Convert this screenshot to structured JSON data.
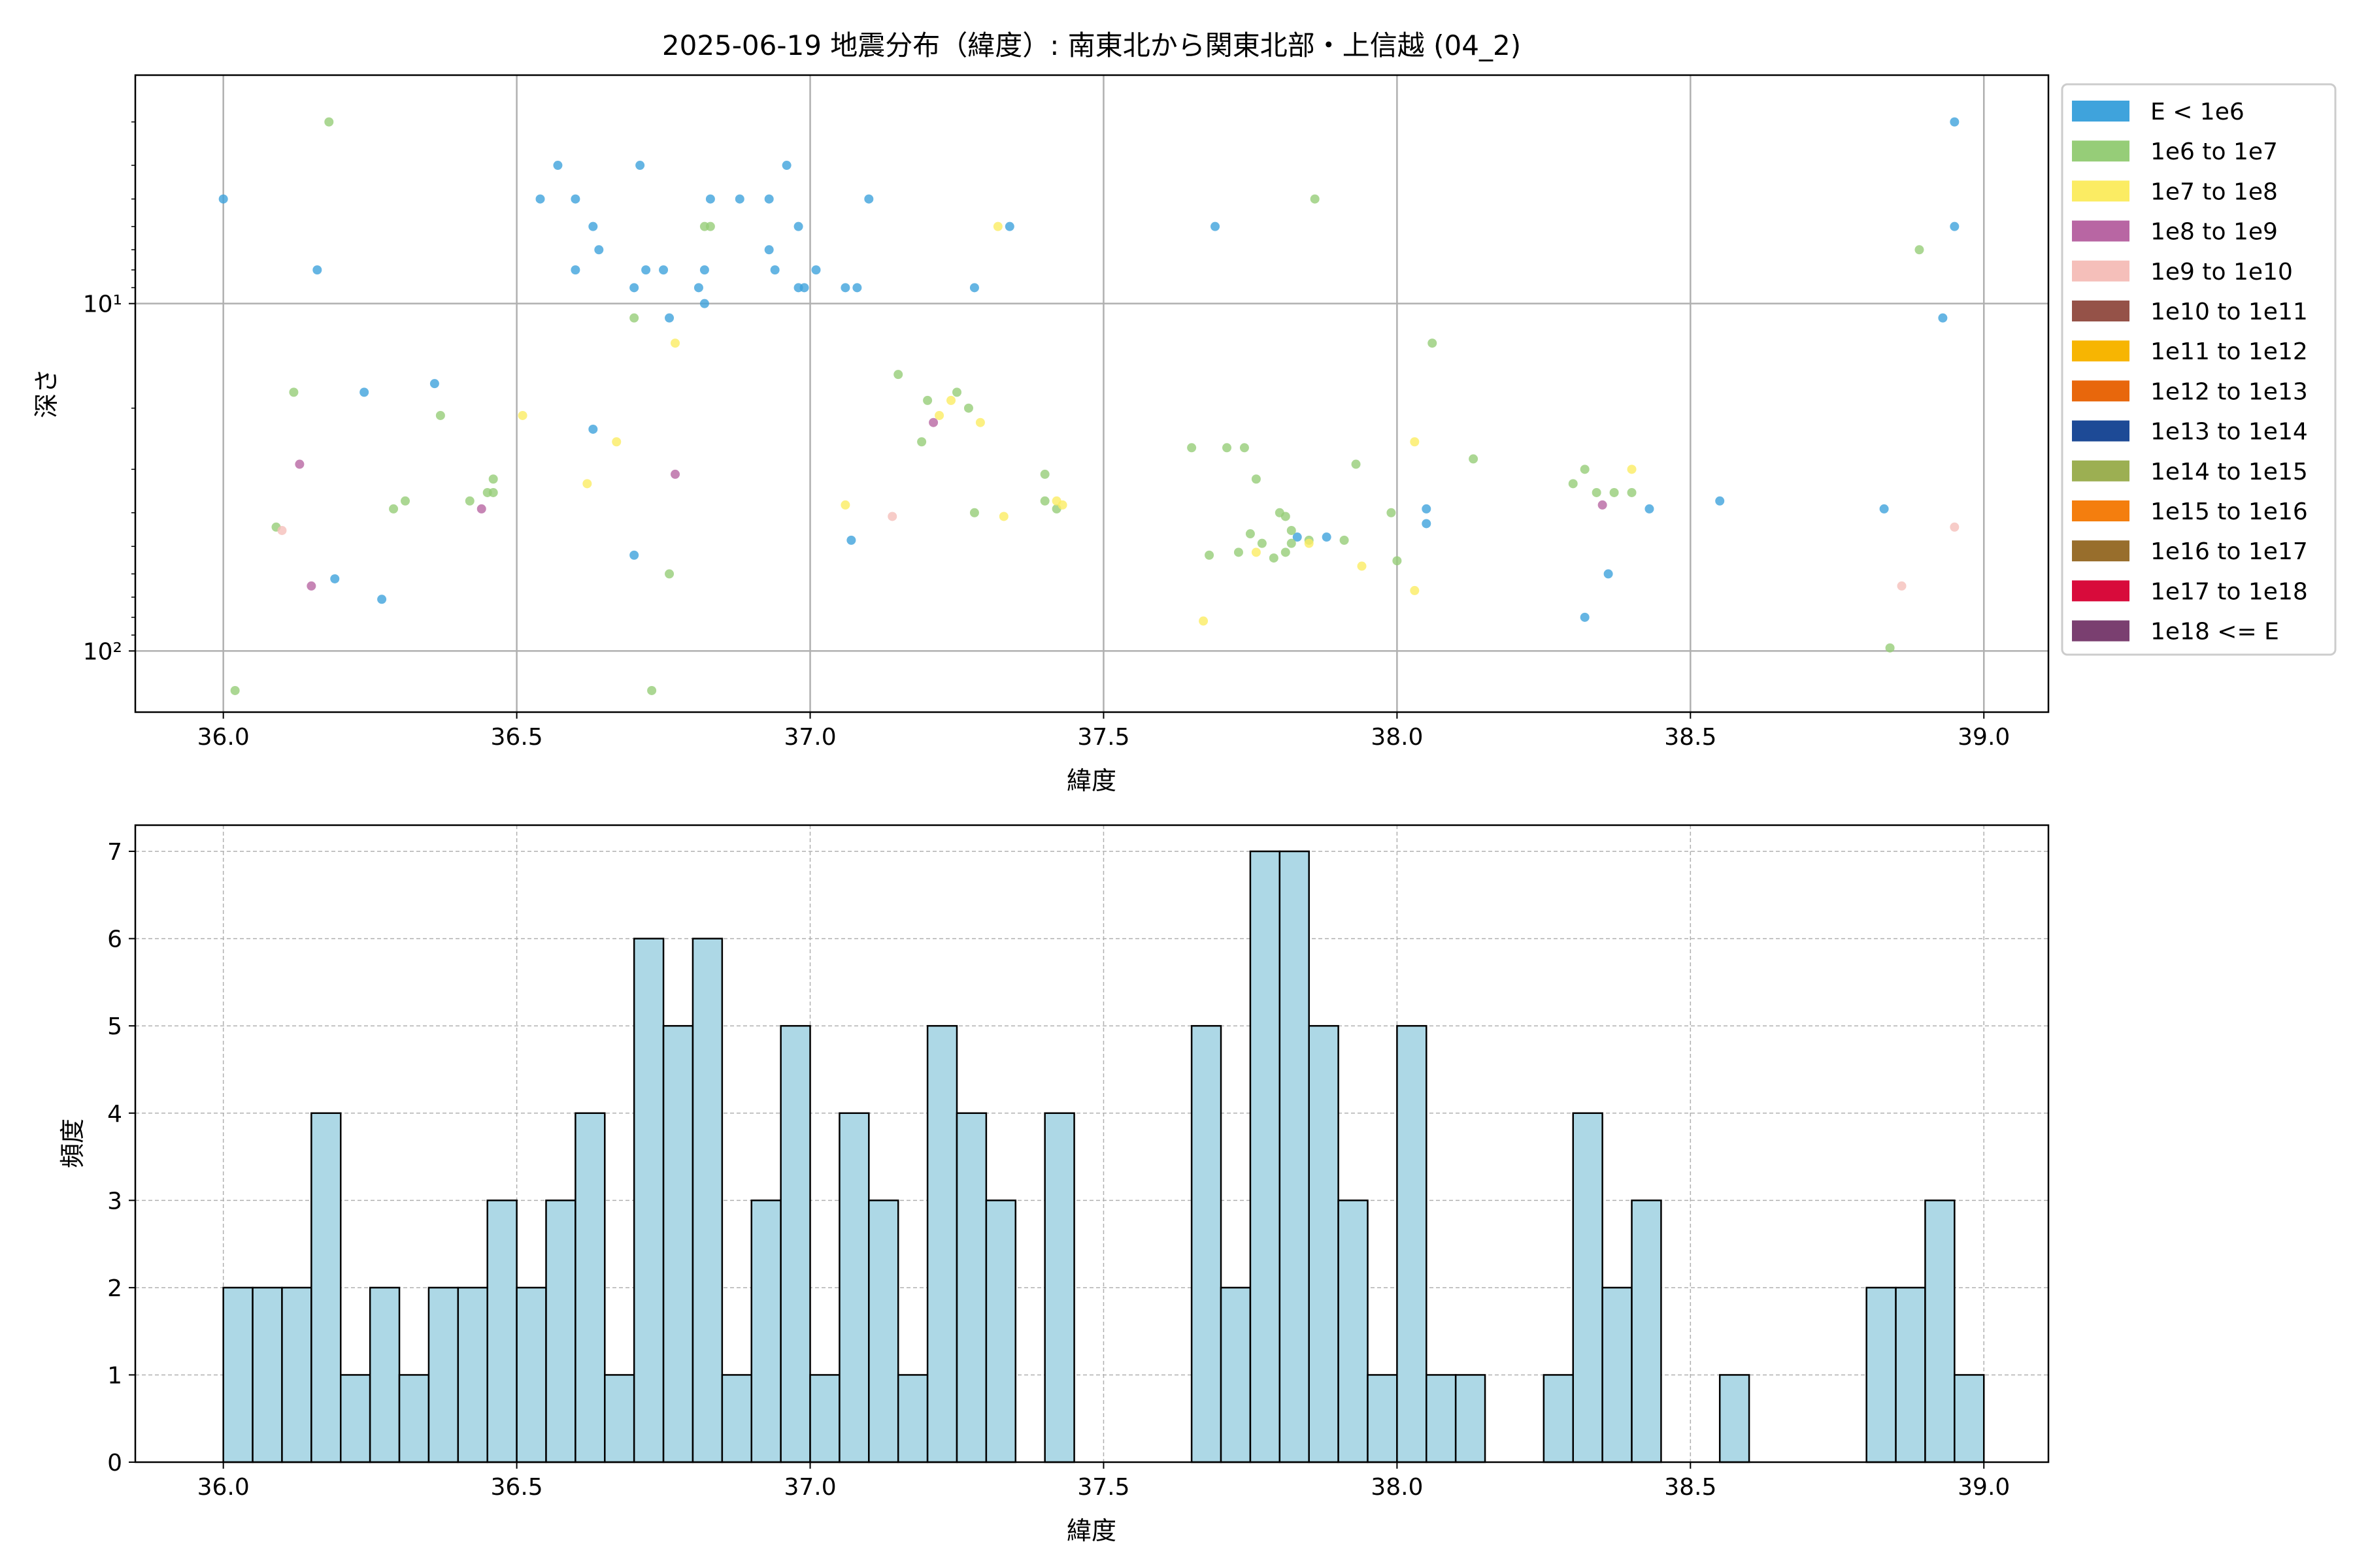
{
  "chart_data": [
    {
      "type": "scatter",
      "title": "2025-06-19 地震分布（緯度）: 南東北から関東北部・上信越 (04_2)",
      "xlabel": "緯度",
      "ylabel": "深さ",
      "xlim": [
        35.85,
        39.11
      ],
      "ylim": [
        150,
        2.2
      ],
      "y_scale": "log",
      "y_inverted": true,
      "grid": true,
      "x_ticks": [
        36.0,
        36.5,
        37.0,
        37.5,
        38.0,
        38.5,
        39.0
      ],
      "x_tick_labels": [
        "36.0",
        "36.5",
        "37.0",
        "37.5",
        "38.0",
        "38.5",
        "39.0"
      ],
      "y_ticks": [
        10,
        100
      ],
      "y_tick_labels": [
        "10¹",
        "10²"
      ],
      "legend_position": "outside-right",
      "legend": [
        {
          "label": "E < 1e6",
          "color": "#3fa3dc"
        },
        {
          "label": "1e6 to 1e7",
          "color": "#96cd78"
        },
        {
          "label": "1e7 to 1e8",
          "color": "#fbec63"
        },
        {
          "label": "1e8 to 1e9",
          "color": "#b866a3"
        },
        {
          "label": "1e9 to 1e10",
          "color": "#f5bfba"
        },
        {
          "label": "1e10 to 1e11",
          "color": "#955248"
        },
        {
          "label": "1e11 to 1e12",
          "color": "#f7b502"
        },
        {
          "label": "1e12 to 1e13",
          "color": "#e8670c"
        },
        {
          "label": "1e13 to 1e14",
          "color": "#1d4a96"
        },
        {
          "label": "1e14 to 1e15",
          "color": "#9caf52"
        },
        {
          "label": "1e15 to 1e16",
          "color": "#f47e0e"
        },
        {
          "label": "1e16 to 1e17",
          "color": "#986e2c"
        },
        {
          "label": "1e17 to 1e18",
          "color": "#d80b3b"
        },
        {
          "label": "1e18 <= E",
          "color": "#7a3f70"
        }
      ],
      "series": [
        {
          "name": "E < 1e6",
          "color": "#3fa3dc",
          "points": [
            [
              36.0,
              5
            ],
            [
              36.16,
              8
            ],
            [
              36.24,
              18
            ],
            [
              36.36,
              17
            ],
            [
              36.19,
              62
            ],
            [
              36.27,
              71
            ],
            [
              36.54,
              5
            ],
            [
              36.57,
              4
            ],
            [
              36.6,
              5
            ],
            [
              36.6,
              8
            ],
            [
              36.63,
              6
            ],
            [
              36.64,
              7
            ],
            [
              36.63,
              23
            ],
            [
              36.71,
              4
            ],
            [
              36.7,
              9
            ],
            [
              36.72,
              8
            ],
            [
              36.75,
              8
            ],
            [
              36.76,
              11
            ],
            [
              36.81,
              9
            ],
            [
              36.82,
              8
            ],
            [
              36.82,
              10
            ],
            [
              36.83,
              5
            ],
            [
              36.88,
              5
            ],
            [
              36.93,
              5
            ],
            [
              36.93,
              7
            ],
            [
              36.94,
              8
            ],
            [
              36.96,
              4
            ],
            [
              36.98,
              6
            ],
            [
              36.98,
              9
            ],
            [
              36.99,
              9
            ],
            [
              37.01,
              8
            ],
            [
              37.06,
              9
            ],
            [
              37.08,
              9
            ],
            [
              37.1,
              5
            ],
            [
              37.28,
              9
            ],
            [
              37.34,
              6
            ],
            [
              36.7,
              53
            ],
            [
              37.07,
              48
            ],
            [
              37.69,
              6
            ],
            [
              37.83,
              47
            ],
            [
              37.88,
              47
            ],
            [
              38.05,
              39
            ],
            [
              38.05,
              43
            ],
            [
              38.32,
              80
            ],
            [
              38.36,
              60
            ],
            [
              38.43,
              39
            ],
            [
              38.55,
              37
            ],
            [
              38.83,
              39
            ],
            [
              38.93,
              11
            ],
            [
              38.95,
              3
            ],
            [
              38.95,
              6
            ]
          ]
        },
        {
          "name": "1e6 to 1e7",
          "color": "#96cd78",
          "points": [
            [
              36.18,
              3
            ],
            [
              36.12,
              18
            ],
            [
              36.02,
              130
            ],
            [
              36.09,
              44
            ],
            [
              36.29,
              39
            ],
            [
              36.31,
              37
            ],
            [
              36.37,
              21
            ],
            [
              36.42,
              37
            ],
            [
              36.45,
              35
            ],
            [
              36.46,
              32
            ],
            [
              36.46,
              35
            ],
            [
              36.7,
              11
            ],
            [
              36.76,
              60
            ],
            [
              36.82,
              6
            ],
            [
              36.83,
              6
            ],
            [
              36.73,
              130
            ],
            [
              37.15,
              16
            ],
            [
              37.19,
              25
            ],
            [
              37.2,
              19
            ],
            [
              37.25,
              18
            ],
            [
              37.27,
              20
            ],
            [
              37.28,
              40
            ],
            [
              37.4,
              31
            ],
            [
              37.4,
              37
            ],
            [
              37.42,
              39
            ],
            [
              37.65,
              26
            ],
            [
              37.68,
              53
            ],
            [
              37.71,
              26
            ],
            [
              37.73,
              52
            ],
            [
              37.74,
              26
            ],
            [
              37.75,
              46
            ],
            [
              37.76,
              32
            ],
            [
              37.77,
              49
            ],
            [
              37.79,
              54
            ],
            [
              37.8,
              40
            ],
            [
              37.81,
              41
            ],
            [
              37.82,
              45
            ],
            [
              37.82,
              49
            ],
            [
              37.81,
              52
            ],
            [
              37.85,
              48
            ],
            [
              37.86,
              5
            ],
            [
              37.91,
              48
            ],
            [
              37.93,
              29
            ],
            [
              37.99,
              40
            ],
            [
              38.0,
              55
            ],
            [
              38.06,
              13
            ],
            [
              38.13,
              28
            ],
            [
              38.3,
              33
            ],
            [
              38.32,
              30
            ],
            [
              38.34,
              35
            ],
            [
              38.37,
              35
            ],
            [
              38.4,
              35
            ],
            [
              38.84,
              98
            ],
            [
              38.89,
              7
            ]
          ]
        },
        {
          "name": "1e7 to 1e8",
          "color": "#fbec63",
          "points": [
            [
              36.51,
              21
            ],
            [
              36.62,
              33
            ],
            [
              36.67,
              25
            ],
            [
              36.77,
              13
            ],
            [
              37.06,
              38
            ],
            [
              37.22,
              21
            ],
            [
              37.24,
              19
            ],
            [
              37.29,
              22
            ],
            [
              37.32,
              6
            ],
            [
              37.33,
              41
            ],
            [
              37.42,
              37
            ],
            [
              37.43,
              38
            ],
            [
              37.67,
              82
            ],
            [
              37.76,
              52
            ],
            [
              37.85,
              49
            ],
            [
              37.94,
              57
            ],
            [
              38.03,
              25
            ],
            [
              38.03,
              67
            ],
            [
              38.4,
              30
            ]
          ]
        },
        {
          "name": "1e8 to 1e9",
          "color": "#b866a3",
          "points": [
            [
              36.13,
              29
            ],
            [
              36.15,
              65
            ],
            [
              36.44,
              39
            ],
            [
              36.77,
              31
            ],
            [
              37.21,
              22
            ],
            [
              38.35,
              38
            ]
          ]
        },
        {
          "name": "1e9 to 1e10",
          "color": "#f5bfba",
          "points": [
            [
              36.1,
              45
            ],
            [
              37.14,
              41
            ],
            [
              38.86,
              65
            ],
            [
              38.95,
              44
            ]
          ]
        }
      ]
    },
    {
      "type": "bar",
      "subtype": "histogram",
      "xlabel": "緯度",
      "ylabel": "頻度",
      "xlim": [
        35.85,
        39.11
      ],
      "ylim": [
        0,
        7.3
      ],
      "grid": true,
      "x_ticks": [
        36.0,
        36.5,
        37.0,
        37.5,
        38.0,
        38.5,
        39.0
      ],
      "x_tick_labels": [
        "36.0",
        "36.5",
        "37.0",
        "37.5",
        "38.0",
        "38.5",
        "39.0"
      ],
      "y_ticks": [
        0,
        1,
        2,
        3,
        4,
        5,
        6,
        7
      ],
      "y_tick_labels": [
        "0",
        "1",
        "2",
        "3",
        "4",
        "5",
        "6",
        "7"
      ],
      "bin_start": 36.0,
      "bin_width": 0.05,
      "fill_color": "#add8e6",
      "values": [
        2,
        2,
        2,
        4,
        1,
        2,
        1,
        2,
        2,
        3,
        2,
        3,
        4,
        1,
        6,
        5,
        6,
        1,
        3,
        5,
        1,
        4,
        3,
        1,
        5,
        4,
        3,
        0,
        4,
        0,
        0,
        0,
        0,
        5,
        2,
        7,
        7,
        5,
        3,
        1,
        5,
        1,
        1,
        0,
        0,
        1,
        4,
        2,
        3,
        0,
        0,
        1,
        0,
        0,
        0,
        0,
        2,
        2,
        3,
        1
      ]
    }
  ]
}
